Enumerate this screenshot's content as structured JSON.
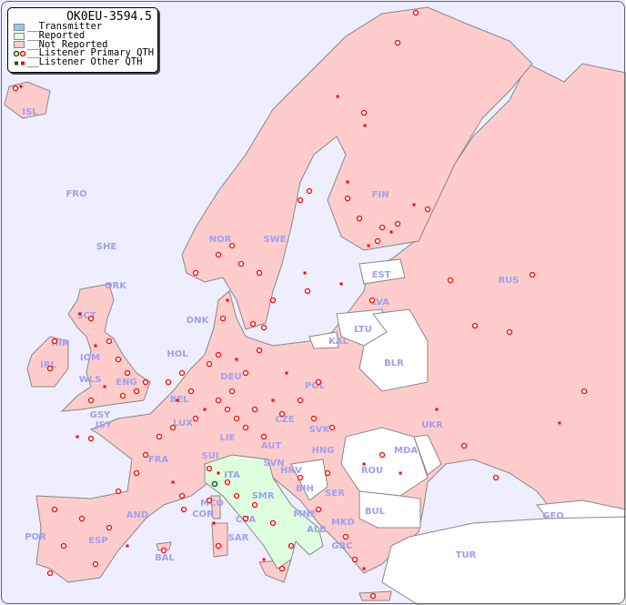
{
  "legend": {
    "title": "OK0EU-3594.5",
    "items": [
      {
        "label": "__Transmitter",
        "color": "#88ccff"
      },
      {
        "label": "__Reported",
        "color": "#ddffdd"
      },
      {
        "label": "__Not Reported",
        "color": "#ffcccc"
      },
      {
        "label": "__Listener Primary QTH",
        "symbol": "circle"
      },
      {
        "label": "__Listener Other QTH",
        "symbol": "square"
      }
    ]
  },
  "colors": {
    "sea": "#eeeeff",
    "not_reported": "#ffcccc",
    "reported": "#ddffdd",
    "no_data": "#ffffff",
    "label": "#a0a0f0",
    "marker": "#ff0000",
    "primary_marker_ok": "#006600"
  },
  "countries": [
    "ISL",
    "FRO",
    "SHE",
    "ORK",
    "NOR",
    "SWE",
    "FIN",
    "EST",
    "RUS",
    "LVA",
    "LTU",
    "KAL",
    "BLR",
    "DNK",
    "HOL",
    "BEL",
    "DEU",
    "POL",
    "UKR",
    "GSY",
    "JSY",
    "LUX",
    "CZE",
    "SVK",
    "HNG",
    "MDA",
    "FRA",
    "SUI",
    "LIE",
    "AUT",
    "SVN",
    "HRV",
    "ROU",
    "ITA",
    "SMR",
    "BIH",
    "SER",
    "BUL",
    "GEO",
    "MCO",
    "COR",
    "CVA",
    "MNE",
    "ALB",
    "MKD",
    "AND",
    "POR",
    "ESP",
    "SAR",
    "GRC",
    "TUR",
    "BAL",
    "IRL",
    "NIR",
    "SCT",
    "IOM",
    "WLS",
    "ENG"
  ]
}
